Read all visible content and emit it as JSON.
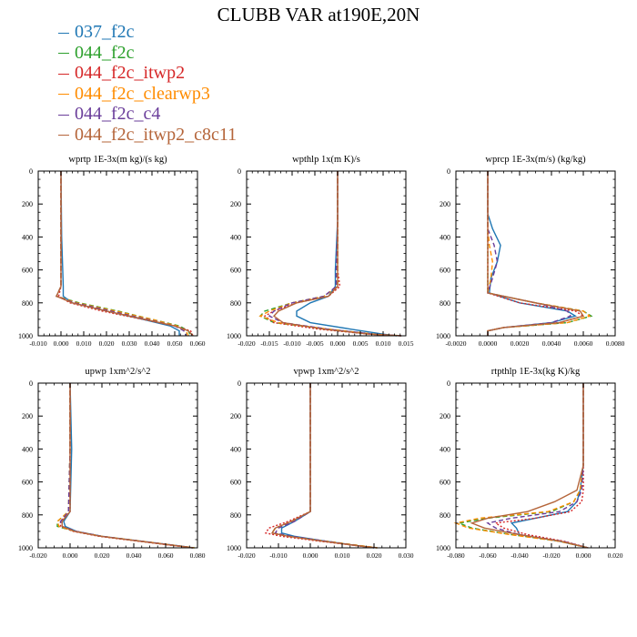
{
  "title": "CLUBB VAR at190E,20N",
  "legend": [
    {
      "label": "037_f2c",
      "color": "#1f77b4",
      "dash": "solid"
    },
    {
      "label": "044_f2c",
      "color": "#2ca02c",
      "dash": "dash"
    },
    {
      "label": "044_f2c_itwp2",
      "color": "#d62728",
      "dash": "dot"
    },
    {
      "label": "044_f2c_clearwp3",
      "color": "#ff8c00",
      "dash": "dash"
    },
    {
      "label": "044_f2c_c4",
      "color": "#6a3d9a",
      "dash": "dash"
    },
    {
      "label": "044_f2c_itwp2_c8c11",
      "color": "#b5653a",
      "dash": "solid"
    }
  ],
  "chart_data": [
    {
      "type": "line",
      "title": "wprtp  1E-3x(m kg)/(s kg)",
      "xlim": [
        -0.01,
        0.06
      ],
      "xticks": [
        -0.01,
        0.0,
        0.01,
        0.02,
        0.03,
        0.04,
        0.05,
        0.06
      ],
      "xtick_labels": [
        "-0.010",
        "0.000",
        "0.010",
        "0.020",
        "0.030",
        "0.040",
        "0.050",
        "0.060"
      ],
      "ylim": [
        0,
        1000
      ],
      "yticks": [
        0,
        200,
        400,
        600,
        800,
        1000
      ],
      "y": [
        0,
        400,
        700,
        760,
        800,
        850,
        900,
        940,
        970,
        1000
      ],
      "series": [
        {
          "name": "037_f2c",
          "x": [
            0,
            0.0003,
            0.001,
            0.001,
            0.005,
            0.02,
            0.036,
            0.048,
            0.052,
            0.052
          ]
        },
        {
          "name": "044_f2c",
          "x": [
            0,
            0,
            0,
            -0.002,
            0.008,
            0.025,
            0.04,
            0.052,
            0.056,
            0.057
          ]
        },
        {
          "name": "044_f2c_itwp2",
          "x": [
            0,
            0,
            0,
            -0.001,
            0.004,
            0.018,
            0.036,
            0.05,
            0.057,
            0.058
          ]
        },
        {
          "name": "044_f2c_clearwp3",
          "x": [
            0,
            0,
            0,
            -0.002,
            0.007,
            0.024,
            0.04,
            0.051,
            0.055,
            0.056
          ]
        },
        {
          "name": "044_f2c_c4",
          "x": [
            0,
            0,
            0,
            -0.002,
            0.006,
            0.022,
            0.038,
            0.05,
            0.054,
            0.055
          ]
        },
        {
          "name": "044_f2c_itwp2_c8c11",
          "x": [
            0,
            0,
            0,
            -0.002,
            0.005,
            0.02,
            0.037,
            0.05,
            0.056,
            0.058
          ]
        }
      ]
    },
    {
      "type": "line",
      "title": "wpthlp  1x(m K)/s",
      "xlim": [
        -0.02,
        0.015
      ],
      "xticks": [
        -0.02,
        -0.015,
        -0.01,
        -0.005,
        0.0,
        0.005,
        0.01,
        0.015
      ],
      "xtick_labels": [
        "-0.020",
        "-0.015",
        "-0.010",
        "-0.005",
        "0.000",
        "0.005",
        "0.010",
        "0.015"
      ],
      "ylim": [
        0,
        1000
      ],
      "yticks": [
        0,
        200,
        400,
        600,
        800,
        1000
      ],
      "y": [
        0,
        300,
        600,
        700,
        760,
        800,
        850,
        880,
        920,
        960,
        990,
        1000
      ],
      "series": [
        {
          "name": "037_f2c",
          "x": [
            0,
            0,
            -0.0005,
            -0.0005,
            -0.002,
            -0.006,
            -0.009,
            -0.009,
            -0.006,
            0.003,
            0.01,
            0.013
          ]
        },
        {
          "name": "044_f2c",
          "x": [
            0,
            0,
            0,
            0,
            -0.003,
            -0.01,
            -0.016,
            -0.017,
            -0.014,
            -0.002,
            0.008,
            0.014
          ]
        },
        {
          "name": "044_f2c_itwp2",
          "x": [
            0,
            0,
            0,
            0.0005,
            -0.002,
            -0.009,
            -0.014,
            -0.016,
            -0.014,
            -0.004,
            0.007,
            0.014
          ]
        },
        {
          "name": "044_f2c_clearwp3",
          "x": [
            0,
            0,
            0,
            0,
            -0.003,
            -0.01,
            -0.015,
            -0.017,
            -0.013,
            -0.002,
            0.008,
            0.014
          ]
        },
        {
          "name": "044_f2c_c4",
          "x": [
            0,
            0,
            -0.0003,
            -0.0003,
            -0.003,
            -0.01,
            -0.014,
            -0.015,
            -0.012,
            -0.002,
            0.008,
            0.014
          ]
        },
        {
          "name": "044_f2c_itwp2_c8c11",
          "x": [
            0,
            0,
            0,
            0,
            -0.002,
            -0.009,
            -0.013,
            -0.014,
            -0.012,
            -0.003,
            0.007,
            0.014
          ]
        }
      ]
    },
    {
      "type": "line",
      "title": "wprcp  1E-3x(m/s) (kg/kg)",
      "xlim": [
        -0.002,
        0.008
      ],
      "xticks": [
        -0.002,
        0.0,
        0.002,
        0.004,
        0.006,
        0.008
      ],
      "xtick_labels": [
        "-0.0020",
        "0.0000",
        "0.0020",
        "0.0040",
        "0.0060",
        "0.0080"
      ],
      "ylim": [
        0,
        1000
      ],
      "yticks": [
        0,
        200,
        400,
        600,
        800,
        1000
      ],
      "y": [
        0,
        260,
        350,
        450,
        550,
        650,
        740,
        800,
        850,
        880,
        920,
        950,
        970,
        1000
      ],
      "series": [
        {
          "name": "037_f2c",
          "x": [
            0,
            0,
            0.0003,
            0.0008,
            0.0006,
            0.0002,
            0.0001,
            0.002,
            0.005,
            0.0055,
            0.004,
            0.001,
            0,
            0
          ]
        },
        {
          "name": "044_f2c",
          "x": [
            0,
            0,
            0,
            0,
            0,
            0,
            0,
            0.003,
            0.006,
            0.0065,
            0.005,
            0.001,
            0,
            0
          ]
        },
        {
          "name": "044_f2c_itwp2",
          "x": [
            0,
            0,
            0,
            0,
            0,
            0,
            0,
            0.002,
            0.0055,
            0.006,
            0.0045,
            0.001,
            0,
            0
          ]
        },
        {
          "name": "044_f2c_clearwp3",
          "x": [
            0,
            0,
            0,
            0.0001,
            0.0003,
            0.0002,
            0,
            0.003,
            0.006,
            0.0064,
            0.005,
            0.001,
            0,
            0
          ]
        },
        {
          "name": "044_f2c_c4",
          "x": [
            0,
            0,
            0,
            0.0004,
            0.0006,
            0.0003,
            0,
            0.003,
            0.005,
            0.0052,
            0.004,
            0.001,
            0,
            0
          ]
        },
        {
          "name": "044_f2c_itwp2_c8c11",
          "x": [
            0,
            0,
            0,
            0,
            0,
            0,
            0,
            0.003,
            0.0058,
            0.006,
            0.0045,
            0.001,
            0,
            0
          ]
        }
      ]
    },
    {
      "type": "line",
      "title": "upwp  1xm^2/s^2",
      "xlim": [
        -0.02,
        0.08
      ],
      "xticks": [
        -0.02,
        0.0,
        0.02,
        0.04,
        0.06,
        0.08
      ],
      "xtick_labels": [
        "-0.020",
        "0.000",
        "0.020",
        "0.040",
        "0.060",
        "0.080"
      ],
      "ylim": [
        0,
        1000
      ],
      "yticks": [
        0,
        200,
        400,
        600,
        800,
        1000
      ],
      "y": [
        0,
        400,
        780,
        840,
        870,
        900,
        930,
        960,
        990,
        1000
      ],
      "series": [
        {
          "name": "037_f2c",
          "x": [
            0,
            0.001,
            0,
            -0.004,
            -0.003,
            0.004,
            0.02,
            0.045,
            0.07,
            0.077
          ]
        },
        {
          "name": "044_f2c",
          "x": [
            0,
            0,
            -0.001,
            -0.008,
            -0.008,
            0.003,
            0.02,
            0.045,
            0.07,
            0.078
          ]
        },
        {
          "name": "044_f2c_itwp2",
          "x": [
            0,
            0,
            0,
            -0.006,
            -0.006,
            0.002,
            0.018,
            0.043,
            0.068,
            0.077
          ]
        },
        {
          "name": "044_f2c_clearwp3",
          "x": [
            0,
            0,
            -0.001,
            -0.008,
            -0.007,
            0.003,
            0.02,
            0.045,
            0.07,
            0.078
          ]
        },
        {
          "name": "044_f2c_c4",
          "x": [
            0,
            0,
            -0.001,
            -0.006,
            -0.005,
            0.004,
            0.02,
            0.045,
            0.07,
            0.077
          ]
        },
        {
          "name": "044_f2c_itwp2_c8c11",
          "x": [
            0,
            0,
            0,
            -0.005,
            -0.005,
            0.003,
            0.019,
            0.044,
            0.069,
            0.077
          ]
        }
      ]
    },
    {
      "type": "line",
      "title": "vpwp  1xm^2/s^2",
      "xlim": [
        -0.02,
        0.03
      ],
      "xticks": [
        -0.02,
        -0.01,
        0.0,
        0.01,
        0.02,
        0.03
      ],
      "xtick_labels": [
        "-0.020",
        "-0.010",
        "0.000",
        "0.010",
        "0.020",
        "0.030"
      ],
      "ylim": [
        0,
        1000
      ],
      "yticks": [
        0,
        200,
        400,
        600,
        800,
        1000
      ],
      "y": [
        0,
        400,
        780,
        840,
        880,
        910,
        930,
        960,
        990,
        1000
      ],
      "series": [
        {
          "name": "037_f2c",
          "x": [
            0,
            0,
            0,
            -0.005,
            -0.009,
            -0.009,
            -0.005,
            0.005,
            0.016,
            0.02
          ]
        },
        {
          "name": "044_f2c",
          "x": [
            0,
            0,
            0,
            -0.006,
            -0.011,
            -0.012,
            -0.007,
            0.005,
            0.017,
            0.021
          ]
        },
        {
          "name": "044_f2c_itwp2",
          "x": [
            0,
            0,
            0,
            -0.007,
            -0.013,
            -0.014,
            -0.009,
            0.003,
            0.016,
            0.021
          ]
        },
        {
          "name": "044_f2c_clearwp3",
          "x": [
            0,
            0,
            0,
            -0.006,
            -0.011,
            -0.012,
            -0.007,
            0.005,
            0.017,
            0.021
          ]
        },
        {
          "name": "044_f2c_c4",
          "x": [
            0,
            0,
            0,
            -0.005,
            -0.01,
            -0.011,
            -0.006,
            0.005,
            0.016,
            0.02
          ]
        },
        {
          "name": "044_f2c_itwp2_c8c11",
          "x": [
            0,
            0,
            0,
            -0.006,
            -0.011,
            -0.012,
            -0.007,
            0.004,
            0.016,
            0.021
          ]
        }
      ]
    },
    {
      "type": "line",
      "title": "rtpthlp  1E-3x(kg K)/kg",
      "xlim": [
        -0.08,
        0.02
      ],
      "xticks": [
        -0.08,
        -0.06,
        -0.04,
        -0.02,
        0.0,
        0.02
      ],
      "xtick_labels": [
        "-0.080",
        "-0.060",
        "-0.040",
        "-0.020",
        "0.000",
        "0.020"
      ],
      "ylim": [
        0,
        1000
      ],
      "yticks": [
        0,
        200,
        400,
        600,
        800,
        1000
      ],
      "y": [
        0,
        500,
        650,
        720,
        780,
        820,
        850,
        880,
        920,
        960,
        1000
      ],
      "series": [
        {
          "name": "037_f2c",
          "x": [
            0,
            0,
            -0.002,
            -0.004,
            -0.01,
            -0.03,
            -0.045,
            -0.042,
            -0.04,
            -0.015,
            0.003
          ]
        },
        {
          "name": "044_f2c",
          "x": [
            0,
            0,
            -0.002,
            -0.006,
            -0.02,
            -0.06,
            -0.078,
            -0.07,
            -0.045,
            -0.015,
            0.003
          ]
        },
        {
          "name": "044_f2c_itwp2",
          "x": [
            0,
            0,
            0,
            -0.001,
            -0.008,
            -0.03,
            -0.055,
            -0.05,
            -0.035,
            -0.012,
            0.003
          ]
        },
        {
          "name": "044_f2c_clearwp3",
          "x": [
            0,
            0,
            -0.002,
            -0.006,
            -0.022,
            -0.065,
            -0.08,
            -0.072,
            -0.046,
            -0.015,
            0.003
          ]
        },
        {
          "name": "044_f2c_c4",
          "x": [
            0,
            0,
            -0.001,
            -0.004,
            -0.015,
            -0.045,
            -0.06,
            -0.055,
            -0.04,
            -0.013,
            0.003
          ]
        },
        {
          "name": "044_f2c_itwp2_c8c11",
          "x": [
            0,
            0,
            -0.004,
            -0.018,
            -0.035,
            -0.06,
            -0.07,
            -0.062,
            -0.04,
            -0.014,
            0.003
          ]
        }
      ]
    }
  ]
}
